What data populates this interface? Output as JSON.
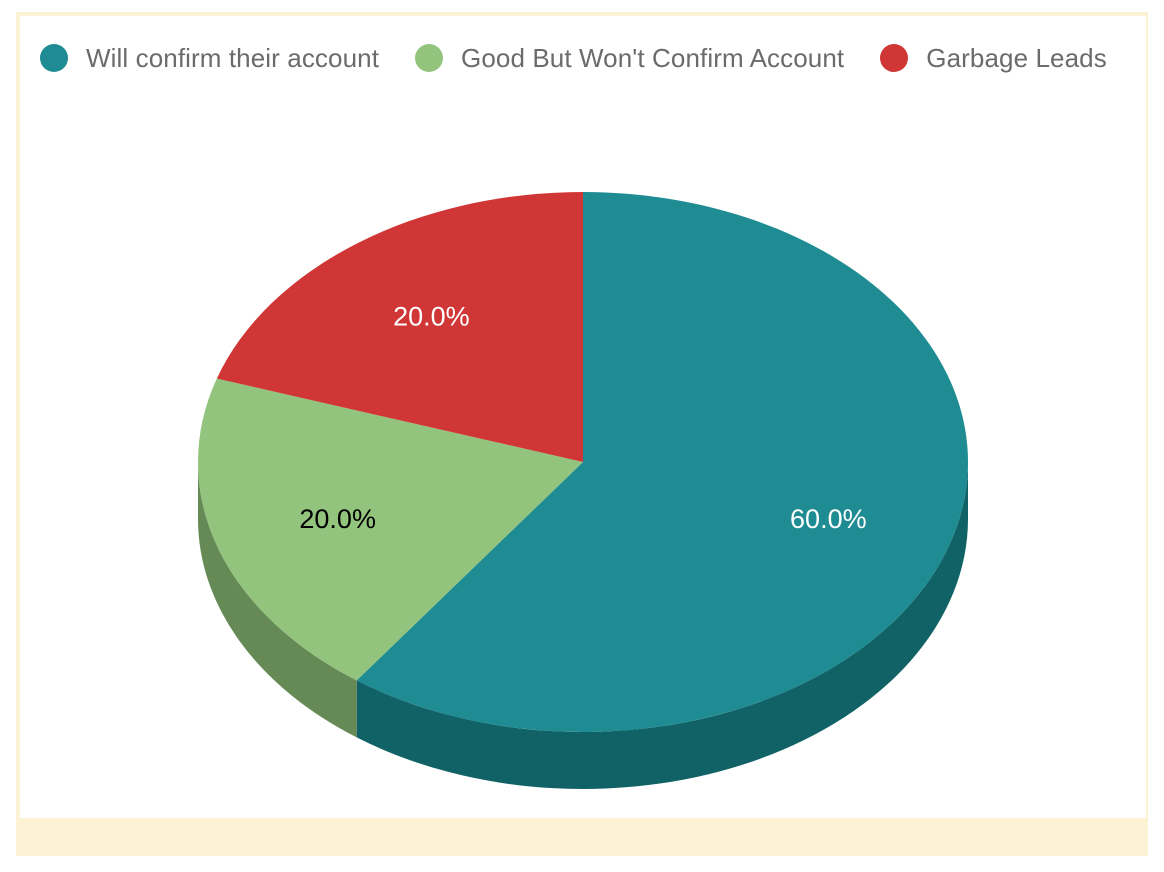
{
  "chart_data": {
    "type": "pie",
    "style": "3d",
    "start_angle_deg": 0,
    "direction": "clockwise",
    "legend_position": "top-left",
    "slices": [
      {
        "label": "Will confirm their account",
        "value": 60.0,
        "display": "60.0%",
        "color": "#1e8c92",
        "side_color": "#116266",
        "text_color": "#ffffff"
      },
      {
        "label": "Good But Won't Confirm Account",
        "value": 20.0,
        "display": "20.0%",
        "color": "#93c47d",
        "side_color": "#668a55",
        "text_color": "#000000"
      },
      {
        "label": "Garbage Leads",
        "value": 20.0,
        "display": "20.0%",
        "color": "#d03636",
        "side_color": "#9a2626",
        "text_color": "#ffffff"
      }
    ]
  },
  "colors": {
    "frame_background": "#fdf2d3",
    "card_background": "#ffffff",
    "legend_text": "#6b6b6b"
  }
}
